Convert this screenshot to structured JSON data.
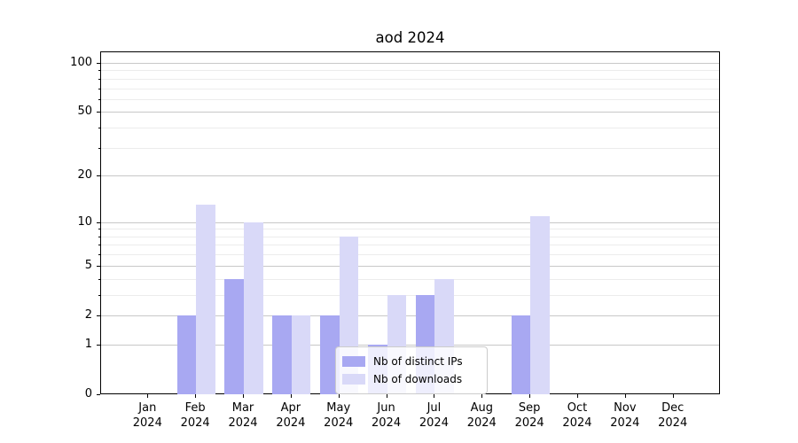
{
  "figure": {
    "title": "aod 2024"
  },
  "chart_data": {
    "type": "bar",
    "title": "aod 2024",
    "categories": [
      "Jan 2024",
      "Feb 2024",
      "Mar 2024",
      "Apr 2024",
      "May 2024",
      "Jun 2024",
      "Jul 2024",
      "Aug 2024",
      "Sep 2024",
      "Oct 2024",
      "Nov 2024",
      "Dec 2024"
    ],
    "series": [
      {
        "name": "Nb of distinct IPs",
        "color": "#a8a8f2",
        "values": [
          0,
          2,
          4,
          2,
          2,
          1,
          3,
          0,
          2,
          0,
          0,
          0
        ]
      },
      {
        "name": "Nb of downloads",
        "color": "#d9d9f8",
        "values": [
          0,
          13,
          10,
          2,
          8,
          3,
          4,
          0,
          11,
          0,
          0,
          0
        ]
      }
    ],
    "xlabel": "",
    "ylabel": "",
    "yscale": "log1p",
    "ylim": [
      0,
      118
    ],
    "yticks": [
      0,
      1,
      2,
      5,
      10,
      20,
      50,
      100
    ],
    "minor_yticks": [
      3,
      4,
      6,
      7,
      8,
      9,
      30,
      40,
      60,
      70,
      80,
      90
    ],
    "grid": true,
    "legend_position": "lower center"
  },
  "colors": {
    "grid_major": "#c8c8c8",
    "grid_minor": "#ececec",
    "axis": "#000000",
    "background": "#ffffff"
  }
}
